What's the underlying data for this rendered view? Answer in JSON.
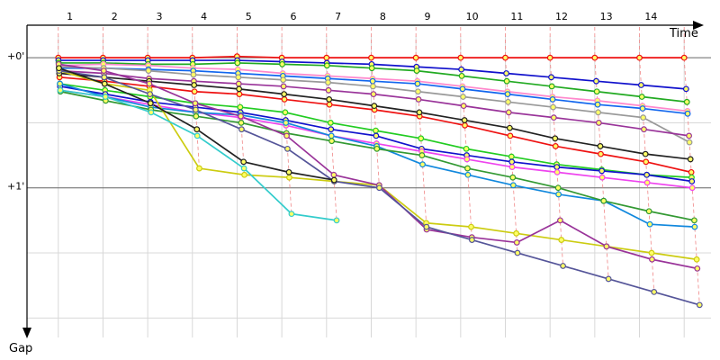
{
  "chart_data": {
    "type": "line",
    "xlabel": "Time",
    "ylabel": "Gap",
    "x_ticks": [
      "1",
      "2",
      "3",
      "4",
      "5",
      "6",
      "7",
      "8",
      "9",
      "10",
      "11",
      "12",
      "13",
      "14"
    ],
    "y_ticks": [
      {
        "value": 0,
        "label": "+0'"
      },
      {
        "value": 1,
        "label": "+1'"
      }
    ],
    "xlim": [
      0.3,
      15.6
    ],
    "ylim": [
      -0.25,
      2.15
    ],
    "grid": true,
    "legend": "none",
    "series": [
      {
        "color": "#ee1111",
        "values": [
          0.0,
          0.0,
          0.0,
          0.0,
          -0.01,
          0.0,
          0.0,
          0.0,
          0.0,
          0.0,
          0.0,
          0.0,
          0.0,
          0.0,
          0.0
        ]
      },
      {
        "color": "#1111cc",
        "values": [
          0.02,
          0.02,
          0.02,
          0.02,
          0.02,
          0.03,
          0.04,
          0.05,
          0.07,
          0.09,
          0.12,
          0.15,
          0.18,
          0.21,
          0.24
        ]
      },
      {
        "color": "#22aa22",
        "values": [
          0.04,
          0.04,
          0.05,
          0.05,
          0.04,
          0.05,
          0.06,
          0.08,
          0.1,
          0.14,
          0.18,
          0.22,
          0.26,
          0.3,
          0.34
        ]
      },
      {
        "color": "#ff88cc",
        "values": [
          0.06,
          0.05,
          0.06,
          0.08,
          0.09,
          0.12,
          0.14,
          0.16,
          0.18,
          0.22,
          0.26,
          0.3,
          0.33,
          0.37,
          0.41
        ]
      },
      {
        "color": "#1166ee",
        "values": [
          0.08,
          0.08,
          0.09,
          0.1,
          0.12,
          0.14,
          0.16,
          0.18,
          0.2,
          0.24,
          0.28,
          0.32,
          0.36,
          0.39,
          0.43
        ]
      },
      {
        "color": "#999999",
        "values": [
          0.07,
          0.08,
          0.1,
          0.13,
          0.15,
          0.17,
          0.19,
          0.22,
          0.26,
          0.3,
          0.34,
          0.38,
          0.42,
          0.46,
          0.65
        ]
      },
      {
        "color": "#993399",
        "values": [
          0.1,
          0.12,
          0.16,
          0.18,
          0.2,
          0.22,
          0.25,
          0.28,
          0.32,
          0.37,
          0.42,
          0.46,
          0.5,
          0.55,
          0.6
        ]
      },
      {
        "color": "#ee1111",
        "values": [
          0.15,
          0.18,
          0.22,
          0.26,
          0.28,
          0.32,
          0.36,
          0.4,
          0.45,
          0.52,
          0.6,
          0.68,
          0.74,
          0.8,
          0.88
        ]
      },
      {
        "color": "#222222",
        "values": [
          0.12,
          0.15,
          0.18,
          0.21,
          0.24,
          0.28,
          0.32,
          0.37,
          0.42,
          0.48,
          0.54,
          0.62,
          0.68,
          0.74,
          0.78
        ]
      },
      {
        "color": "#22cc22",
        "values": [
          0.2,
          0.25,
          0.3,
          0.35,
          0.38,
          0.42,
          0.5,
          0.56,
          0.62,
          0.7,
          0.76,
          0.82,
          0.86,
          0.9,
          0.92
        ]
      },
      {
        "color": "#1111cc",
        "values": [
          0.22,
          0.28,
          0.34,
          0.38,
          0.42,
          0.48,
          0.55,
          0.6,
          0.7,
          0.75,
          0.8,
          0.84,
          0.87,
          0.9,
          0.95
        ]
      },
      {
        "color": "#ee44ee",
        "values": [
          0.25,
          0.3,
          0.36,
          0.42,
          0.46,
          0.52,
          0.6,
          0.66,
          0.72,
          0.78,
          0.84,
          0.88,
          0.92,
          0.96,
          1.0
        ]
      },
      {
        "color": "#1188dd",
        "values": [
          0.2,
          0.3,
          0.38,
          0.42,
          0.44,
          0.5,
          0.6,
          0.68,
          0.82,
          0.9,
          0.98,
          1.05,
          1.1,
          1.28,
          1.3
        ]
      },
      {
        "color": "#339933",
        "values": [
          0.26,
          0.33,
          0.4,
          0.45,
          0.5,
          0.58,
          0.64,
          0.7,
          0.75,
          0.85,
          0.92,
          1.0,
          1.1,
          1.18,
          1.25
        ]
      },
      {
        "color": "#cccc11",
        "values": [
          0.1,
          0.2,
          0.25,
          0.85,
          0.9,
          0.92,
          0.95,
          0.98,
          1.27,
          1.3,
          1.35,
          1.4,
          1.45,
          1.5,
          1.55
        ]
      },
      {
        "color": "#993399",
        "values": [
          0.05,
          0.1,
          0.2,
          0.35,
          0.45,
          0.6,
          0.9,
          0.98,
          1.32,
          1.38,
          1.42,
          1.25,
          1.45,
          1.55,
          1.62
        ]
      },
      {
        "color": "#555599",
        "values": [
          0.1,
          0.15,
          0.28,
          0.4,
          0.55,
          0.7,
          0.95,
          1.0,
          1.3,
          1.4,
          1.5,
          1.6,
          1.7,
          1.8,
          1.9
        ]
      },
      {
        "color": "#222222",
        "values": [
          0.08,
          0.2,
          0.35,
          0.55,
          0.8,
          0.88,
          0.94
        ]
      },
      {
        "color": "#33cccc",
        "values": [
          0.25,
          0.3,
          0.42,
          0.6,
          0.85,
          1.2,
          1.25
        ]
      }
    ]
  }
}
